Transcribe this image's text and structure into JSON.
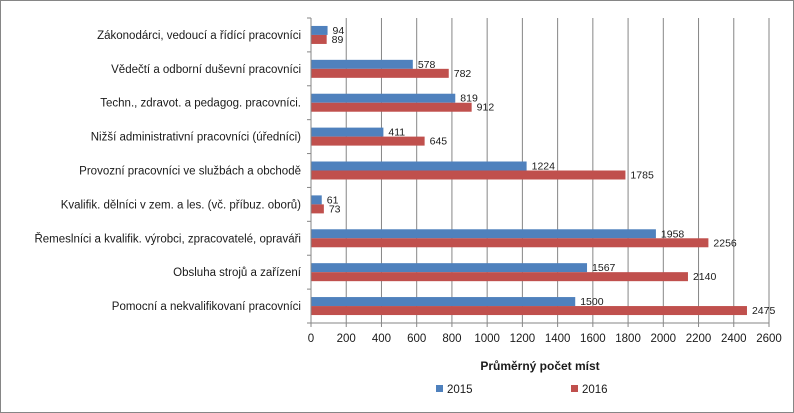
{
  "chart_data": {
    "type": "bar",
    "orientation": "horizontal",
    "categories": [
      "Zákonodárci, vedoucí a řídící pracovníci",
      "Vědečtí a odborní duševní pracovníci",
      "Techn., zdravot. a pedagog. pracovníci.",
      "Nižší administrativní pracovníci (úředníci)",
      "Provozní pracovníci ve službách a obchodě",
      "Kvalifik. dělníci v zem. a les. (vč. příbuz. oborů)",
      "Řemeslníci a kvalifik. výrobci, zpracovatelé, opraváři",
      "Obsluha strojů a zařízení",
      "Pomocní a nekvalifikovaní pracovníci"
    ],
    "series": [
      {
        "name": "2015",
        "color": "#4f81bd",
        "values": [
          94,
          578,
          819,
          411,
          1224,
          61,
          1958,
          1567,
          1500
        ]
      },
      {
        "name": "2016",
        "color": "#c0504d",
        "values": [
          89,
          782,
          912,
          645,
          1785,
          73,
          2256,
          2140,
          2475
        ]
      }
    ],
    "xlabel": "Průměrný počet míst",
    "xlim": [
      0,
      2600
    ],
    "xticks": [
      "0",
      "200",
      "400",
      "600",
      "800",
      "1000",
      "1200",
      "1400",
      "1600",
      "1800",
      "2000",
      "2200",
      "2400",
      "2600"
    ],
    "grid": true,
    "legend_position": "bottom"
  }
}
